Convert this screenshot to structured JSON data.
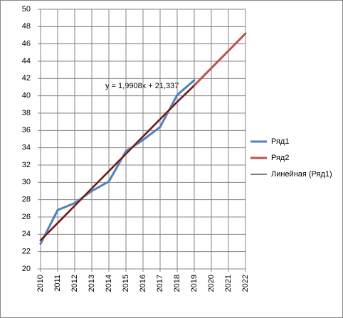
{
  "chart_data": {
    "type": "line",
    "categories": [
      "2010",
      "2011",
      "2012",
      "2013",
      "2014",
      "2015",
      "2016",
      "2017",
      "2018",
      "2019",
      "2020",
      "2021",
      "2022"
    ],
    "series": [
      {
        "name": "Ряд1",
        "color": "#4f81bd",
        "values": [
          22.9,
          26.8,
          27.6,
          29.0,
          30.1,
          33.6,
          34.9,
          36.4,
          40.1,
          41.8,
          null,
          null,
          null
        ]
      },
      {
        "name": "Ряд2",
        "color": "#c0504d",
        "values": [
          23.3,
          25.3,
          27.3,
          29.3,
          31.3,
          33.3,
          35.3,
          37.3,
          39.3,
          41.2,
          43.2,
          45.2,
          47.2
        ]
      },
      {
        "name": "Линейная (Ряд1)",
        "color": "#000000",
        "values": [
          23.3,
          25.3,
          27.3,
          29.3,
          31.3,
          33.3,
          35.3,
          37.3,
          39.3,
          41.2,
          null,
          null,
          null
        ]
      }
    ],
    "annotation": "y = 1,9908x + 21,337",
    "ylim": [
      20,
      50
    ],
    "yticks": [
      20,
      22,
      24,
      26,
      28,
      30,
      32,
      34,
      36,
      38,
      40,
      42,
      44,
      46,
      48,
      50
    ],
    "grid": true,
    "legend": "right"
  }
}
